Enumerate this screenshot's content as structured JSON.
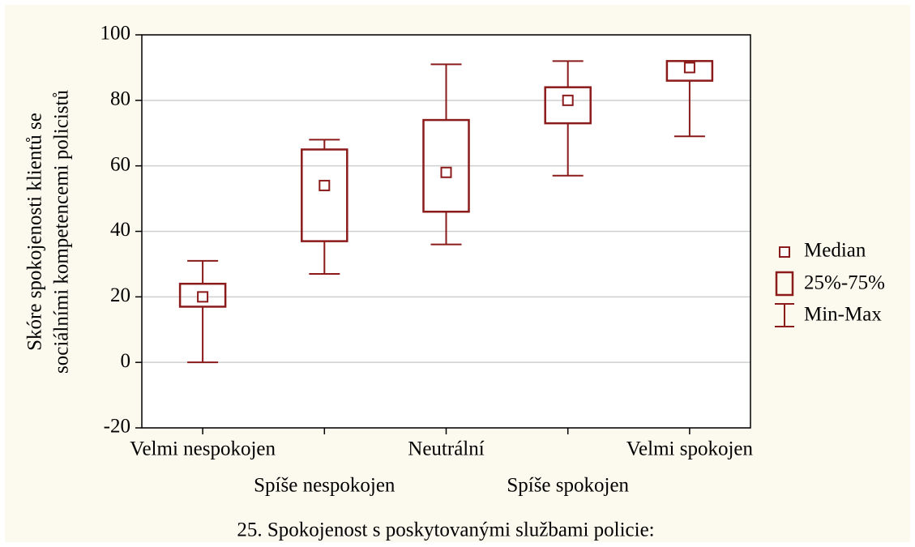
{
  "chart_data": {
    "type": "box",
    "x_label": "25. Spokojenost s poskytovanými službami policie:",
    "y_label": [
      "Skóre spokojenosti klientů se",
      "sociálními kompetencemi policistů"
    ],
    "categories": [
      "Velmi nespokojen",
      "Spíše nespokojen",
      "Neutrální",
      "Spíše spokojen",
      "Velmi spokojen"
    ],
    "boxes": [
      {
        "min": 0,
        "q1": 17,
        "median": 20,
        "q3": 24,
        "max": 31
      },
      {
        "min": 27,
        "q1": 37,
        "median": 54,
        "q3": 65,
        "max": 68
      },
      {
        "min": 36,
        "q1": 46,
        "median": 58,
        "q3": 74,
        "max": 91
      },
      {
        "min": 57,
        "q1": 73,
        "median": 80,
        "q3": 84,
        "max": 92
      },
      {
        "min": 69,
        "q1": 86,
        "median": 90,
        "q3": 92,
        "max": 92
      }
    ],
    "legend_labels": [
      "Median",
      "25%-75%",
      "Min-Max"
    ],
    "color": "#8b1a1a",
    "ylim": [
      -20,
      100
    ],
    "yticks": [
      -20,
      0,
      20,
      40,
      60,
      80,
      100
    ],
    "grid": true,
    "legend": "right"
  }
}
